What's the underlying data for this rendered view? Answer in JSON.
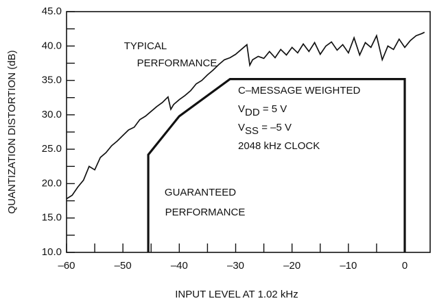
{
  "chart_data": {
    "type": "line",
    "xlabel": "INPUT LEVEL AT 1.02 kHz",
    "ylabel": "QUANTIZATION DISTORTION (dB)",
    "xlim": [
      -60,
      4.5
    ],
    "ylim": [
      10,
      45
    ],
    "xticks": [
      {
        "value": -60,
        "label": "–60"
      },
      {
        "value": -50,
        "label": "–50"
      },
      {
        "value": -40,
        "label": "–40"
      },
      {
        "value": -30,
        "label": "–30"
      },
      {
        "value": -20,
        "label": "–20"
      },
      {
        "value": -10,
        "label": "–10"
      },
      0
    ],
    "xminorticks": [
      -55,
      -45,
      -35,
      -25,
      -15,
      -5
    ],
    "yticks": [
      {
        "value": 10,
        "label": "10.0"
      },
      {
        "value": 15,
        "label": "15.0"
      },
      {
        "value": 20,
        "label": "20.0"
      },
      {
        "value": 25,
        "label": "25.0"
      },
      {
        "value": 30,
        "label": "30.0"
      },
      {
        "value": 35,
        "label": "35.0"
      },
      {
        "value": 40,
        "label": "40.0"
      },
      {
        "value": 45,
        "label": "45.0"
      }
    ],
    "yminorticks": [
      12.5,
      17.5,
      22.5,
      27.5,
      32.5,
      37.5,
      42.5
    ],
    "series": [
      {
        "name": "TYPICAL PERFORMANCE",
        "color": "#111111",
        "x": [
          -60,
          -59,
          -58,
          -57,
          -56,
          -55,
          -54,
          -53,
          -52,
          -51,
          -50,
          -49,
          -48,
          -47,
          -46,
          -45,
          -44,
          -43,
          -42,
          -41.5,
          -41,
          -40,
          -39,
          -38,
          -37,
          -36,
          -35,
          -34,
          -33,
          -32,
          -31,
          -30,
          -29,
          -28,
          -27.5,
          -27,
          -26,
          -25,
          -24,
          -23,
          -22,
          -21,
          -20,
          -19,
          -18,
          -17,
          -16,
          -15,
          -14,
          -13,
          -12,
          -11,
          -10,
          -9,
          -8,
          -7,
          -6,
          -5,
          -4,
          -3,
          -2,
          -1,
          0,
          1,
          2,
          3,
          3.5
        ],
        "values": [
          17.8,
          18.3,
          19.5,
          20.5,
          22.5,
          22.0,
          23.8,
          24.5,
          25.5,
          26.2,
          27.0,
          27.8,
          28.2,
          29.3,
          29.8,
          30.5,
          31.2,
          31.8,
          32.6,
          30.8,
          31.5,
          32.2,
          32.8,
          33.5,
          34.5,
          35.0,
          35.8,
          36.5,
          37.3,
          38.0,
          38.3,
          38.8,
          39.5,
          40.2,
          37.2,
          38.0,
          38.5,
          38.2,
          39.2,
          38.3,
          39.5,
          38.7,
          39.8,
          39.0,
          40.3,
          39.2,
          40.5,
          38.8,
          40.0,
          40.6,
          39.4,
          40.2,
          39.0,
          41.2,
          38.7,
          40.5,
          39.8,
          41.5,
          38.0,
          40.0,
          39.5,
          41.0,
          39.8,
          40.8,
          41.5,
          41.8,
          42.0
        ]
      },
      {
        "name": "GUARANTEED PERFORMANCE",
        "color": "#111111",
        "x": [
          -45.5,
          -45.5,
          -40,
          -31,
          0,
          0
        ],
        "values": [
          10,
          24.2,
          29.8,
          35.2,
          35.2,
          10
        ]
      }
    ],
    "annotations": [
      [
        {
          "text": "C–MESSAGE WEIGHTED"
        }
      ],
      [
        {
          "text": "V"
        },
        {
          "text": "DD",
          "sub": true
        },
        {
          "text": " = 5 V"
        }
      ],
      [
        {
          "text": "V"
        },
        {
          "text": "SS",
          "sub": true
        },
        {
          "text": " = –5 V"
        }
      ],
      [
        {
          "text": "2048 kHz CLOCK"
        }
      ]
    ]
  }
}
